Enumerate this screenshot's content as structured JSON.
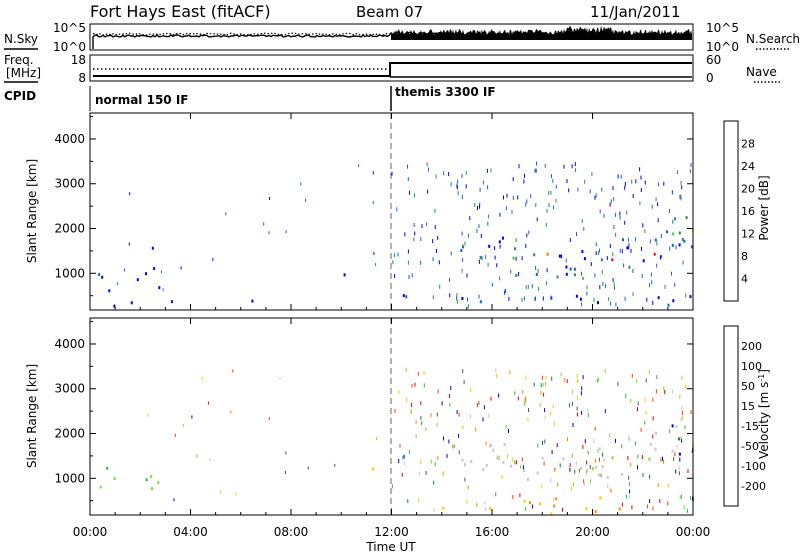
{
  "header": {
    "station": "Fort Hays East (fitACF)",
    "beam": "Beam 07",
    "date": "11/Jan/2011"
  },
  "noise_panel": {
    "left_label": "N.Sky",
    "right_label": "N.Search",
    "left_ticks": [
      "10^5",
      "10^0"
    ],
    "right_ticks": [
      "10^5",
      "10^0"
    ]
  },
  "freq_panel": {
    "left_label_1": "Freq.",
    "left_label_2": "[MHz]",
    "right_label": "Nave",
    "left_ticks": [
      "18",
      "8"
    ],
    "right_ticks": [
      "60",
      "0"
    ]
  },
  "cpid_panel": {
    "label": "CPID",
    "modes": [
      {
        "name": "normal 150 IF",
        "start_hour": 0
      },
      {
        "name": "themis 3300 IF",
        "start_hour": 12
      }
    ]
  },
  "x_axis": {
    "label": "Time UT",
    "tick_labels": [
      "00:00",
      "04:00",
      "08:00",
      "12:00",
      "16:00",
      "20:00",
      "00:00"
    ],
    "range_hours": [
      0,
      24
    ]
  },
  "chart_data": [
    {
      "type": "heatmap",
      "name": "power",
      "ylabel": "Slant Range [km]",
      "y_ticks": [
        "1000",
        "2000",
        "3000",
        "4000"
      ],
      "ylim": [
        180,
        4580
      ],
      "colorbar": {
        "label": "Power [dB]",
        "tick_labels": [
          "4",
          "8",
          "12",
          "16",
          "20",
          "24",
          "28"
        ],
        "range": [
          0,
          30
        ],
        "colors": [
          "#0000ff",
          "#1e5fd2",
          "#2d8c5a",
          "#5cbf3a",
          "#ffff00",
          "#ffa500",
          "#ff6a00",
          "#ff0000"
        ]
      },
      "regions": [
        {
          "t": [
            0.3,
            3.0
          ],
          "r": [
            600,
            1600
          ],
          "level": "low"
        },
        {
          "t": [
            0.3,
            2.2
          ],
          "r": [
            800,
            1000
          ],
          "level": "mid"
        },
        {
          "t": [
            0,
            6.5
          ],
          "r": [
            200,
            450
          ],
          "level": "low"
        },
        {
          "t": [
            9.8,
            11.5
          ],
          "r": [
            950,
            1300
          ],
          "level": "mid"
        },
        {
          "t": [
            12,
            24
          ],
          "r": [
            200,
            600
          ],
          "level": "low"
        },
        {
          "t": [
            14,
            24
          ],
          "r": [
            900,
            2500
          ],
          "level": "high"
        },
        {
          "t": [
            23,
            24
          ],
          "r": [
            2500,
            3500
          ],
          "level": "mid"
        }
      ]
    },
    {
      "type": "heatmap",
      "name": "velocity",
      "ylabel": "Slant Range [km]",
      "y_ticks": [
        "1000",
        "2000",
        "3000",
        "4000"
      ],
      "ylim": [
        180,
        4580
      ],
      "colorbar": {
        "label": "Velocity [m s^-1]",
        "tick_labels": [
          "200",
          "100",
          "50",
          "15",
          "-15",
          "-50",
          "-100",
          "-200"
        ],
        "range": [
          -250,
          250
        ],
        "colors": [
          "#0000cc",
          "#2d6e50",
          "#3cb43c",
          "#7ddc3c",
          "#c8c8c8",
          "#ffc800",
          "#ff8c00",
          "#ff3c00",
          "#e60000"
        ]
      },
      "regions": [
        {
          "t": [
            0.3,
            3.0
          ],
          "r": [
            600,
            1600
          ],
          "velocity": "15 to 50"
        },
        {
          "t": [
            9.8,
            11.5
          ],
          "r": [
            950,
            1300
          ],
          "velocity": "-15 to -50"
        },
        {
          "t": [
            12,
            24
          ],
          "r": [
            200,
            600
          ],
          "velocity": "-15 to -50"
        },
        {
          "t": [
            14,
            24
          ],
          "r": [
            900,
            2500
          ],
          "velocity": "-15 to 15"
        },
        {
          "t": [
            23,
            24
          ],
          "r": [
            2500,
            3500
          ],
          "velocity": "100 to 200"
        }
      ]
    }
  ]
}
